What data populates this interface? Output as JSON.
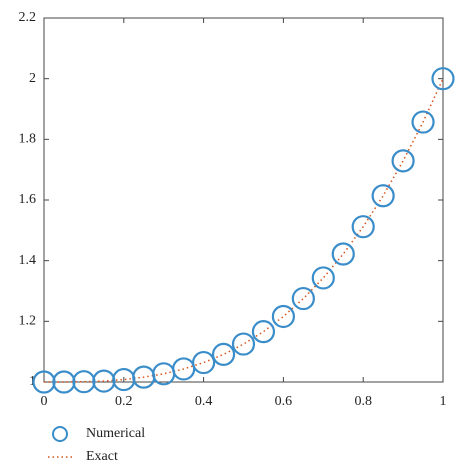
{
  "chart_data": {
    "type": "scatter",
    "x": [
      0,
      0.05,
      0.1,
      0.15,
      0.2,
      0.25,
      0.3,
      0.35,
      0.4,
      0.45,
      0.5,
      0.55,
      0.6,
      0.65,
      0.7,
      0.75,
      0.8,
      0.85,
      0.9,
      0.95,
      1
    ],
    "series": [
      {
        "name": "Numerical",
        "color": "#3a8dc9",
        "style": "marker",
        "values": [
          1,
          1.0,
          1.001,
          1.003,
          1.008,
          1.016,
          1.027,
          1.043,
          1.064,
          1.091,
          1.125,
          1.166,
          1.216,
          1.275,
          1.343,
          1.422,
          1.512,
          1.614,
          1.729,
          1.857,
          2
        ]
      },
      {
        "name": "Exact",
        "color": "#d95319",
        "style": "dotted",
        "values": [
          1,
          1.0,
          1.001,
          1.003,
          1.008,
          1.016,
          1.027,
          1.043,
          1.064,
          1.091,
          1.125,
          1.166,
          1.216,
          1.275,
          1.343,
          1.422,
          1.512,
          1.614,
          1.729,
          1.857,
          2
        ]
      }
    ],
    "xlim": [
      0,
      1
    ],
    "xticks": [
      0,
      0.2,
      0.4,
      0.6,
      0.8,
      1
    ],
    "ylim": [
      1,
      2.2
    ],
    "yticks": [
      1,
      1.2,
      1.4,
      1.6,
      1.8,
      2,
      2.2
    ],
    "legend": "below-left"
  }
}
